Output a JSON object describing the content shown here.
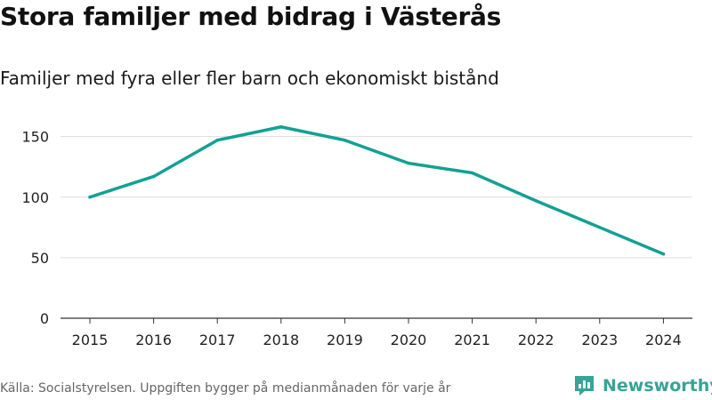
{
  "title": "Stora familjer med bidrag i Västerås",
  "subtitle": "Familjer med fyra eller fler barn och ekonomiskt bistånd",
  "footer": "Källa: Socialstyrelsen. Uppgiften bygger på medianmånaden för varje år",
  "brand": {
    "name": "Newsworthy",
    "icon": "newsworthy-logo-icon",
    "color": "#36a497"
  },
  "chart_data": {
    "type": "line",
    "title": "Stora familjer med bidrag i Västerås",
    "subtitle": "Familjer med fyra eller fler barn och ekonomiskt bistånd",
    "xlabel": "",
    "ylabel": "",
    "grid": true,
    "ylim": [
      0,
      160
    ],
    "yticks": [
      0,
      50,
      100,
      150
    ],
    "categories": [
      "2015",
      "2016",
      "2017",
      "2018",
      "2019",
      "2020",
      "2021",
      "2022",
      "2023",
      "2024"
    ],
    "series": [
      {
        "name": "Familjer med fyra eller fler barn och ekonomiskt bistånd",
        "color": "#13a095",
        "values": [
          100,
          117,
          147,
          158,
          147,
          128,
          120,
          97,
          75,
          53
        ]
      }
    ]
  }
}
